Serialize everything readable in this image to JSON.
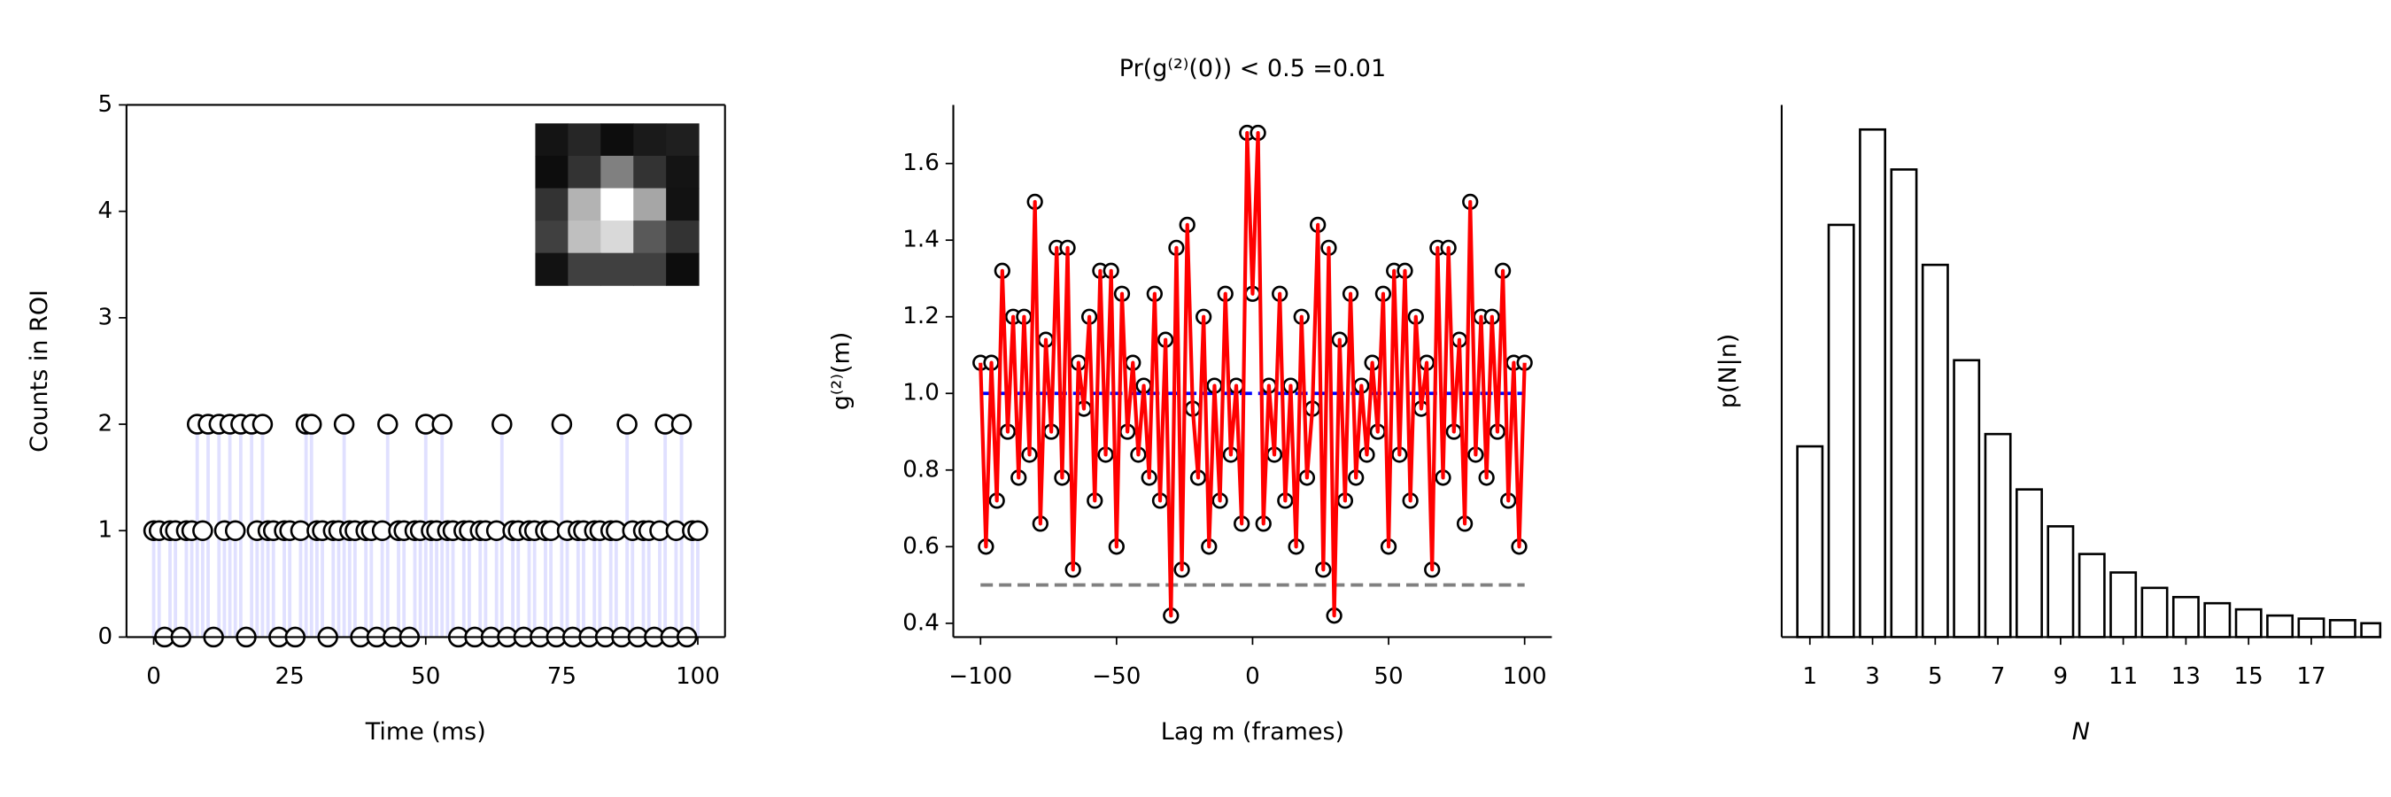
{
  "chart_data": [
    {
      "type": "stem",
      "xlabel": "Time (ms)",
      "ylabel": "Counts in ROI",
      "x": [
        0,
        1,
        2,
        3,
        4,
        5,
        6,
        7,
        8,
        9,
        10,
        11,
        12,
        13,
        14,
        15,
        16,
        17,
        18,
        19,
        20,
        21,
        22,
        23,
        24,
        25,
        26,
        27,
        28,
        29,
        30,
        31,
        32,
        33,
        34,
        35,
        36,
        37,
        38,
        39,
        40,
        41,
        42,
        43,
        44,
        45,
        46,
        47,
        48,
        49,
        50,
        51,
        52,
        53,
        54,
        55,
        56,
        57,
        58,
        59,
        60,
        61,
        62,
        63,
        64,
        65,
        66,
        67,
        68,
        69,
        70,
        71,
        72,
        73,
        74,
        75,
        76,
        77,
        78,
        79,
        80,
        81,
        82,
        83,
        84,
        85,
        86,
        87,
        88,
        89,
        90,
        91,
        92,
        93,
        94,
        95,
        96,
        97,
        98,
        99,
        100
      ],
      "values": [
        1,
        1,
        0,
        1,
        1,
        0,
        1,
        1,
        2,
        1,
        2,
        0,
        2,
        1,
        2,
        1,
        2,
        0,
        2,
        1,
        2,
        1,
        1,
        0,
        1,
        1,
        0,
        1,
        2,
        2,
        1,
        1,
        0,
        1,
        1,
        2,
        1,
        1,
        0,
        1,
        1,
        0,
        1,
        2,
        0,
        1,
        1,
        0,
        1,
        1,
        2,
        1,
        1,
        2,
        1,
        1,
        0,
        1,
        1,
        0,
        1,
        1,
        0,
        1,
        2,
        0,
        1,
        1,
        0,
        1,
        1,
        0,
        1,
        1,
        0,
        2,
        1,
        0,
        1,
        1,
        0,
        1,
        1,
        0,
        1,
        1,
        0,
        2,
        1,
        0,
        1,
        1,
        0,
        1,
        2,
        0,
        1,
        2,
        0,
        1,
        1
      ],
      "color": "#0000ff",
      "xlim": [
        -5,
        105
      ],
      "xticks": [
        0,
        25,
        50,
        75,
        100
      ],
      "ylim": [
        0,
        5
      ],
      "yticks": [
        0,
        1,
        2,
        3,
        4,
        5
      ],
      "inset": {
        "type": "heatmap",
        "cmap": "gray",
        "values": [
          [
            0.08,
            0.15,
            0.05,
            0.1,
            0.12
          ],
          [
            0.05,
            0.2,
            0.5,
            0.2,
            0.08
          ],
          [
            0.2,
            0.7,
            1.0,
            0.65,
            0.07
          ],
          [
            0.25,
            0.75,
            0.85,
            0.35,
            0.2
          ],
          [
            0.07,
            0.25,
            0.25,
            0.25,
            0.05
          ]
        ]
      }
    },
    {
      "type": "line",
      "title": "Pr(g⁽²⁾(0)) < 0.5 =0.01",
      "xlabel": "Lag m (frames)",
      "ylabel": "g⁽²⁾(m)",
      "x": [
        -100,
        -98,
        -96,
        -94,
        -92,
        -90,
        -88,
        -86,
        -84,
        -82,
        -80,
        -78,
        -76,
        -74,
        -72,
        -70,
        -68,
        -66,
        -64,
        -62,
        -60,
        -58,
        -56,
        -54,
        -52,
        -50,
        -48,
        -46,
        -44,
        -42,
        -40,
        -38,
        -36,
        -34,
        -32,
        -30,
        -28,
        -26,
        -24,
        -22,
        -20,
        -18,
        -16,
        -14,
        -12,
        -10,
        -8,
        -6,
        -4,
        -2,
        0,
        2,
        4,
        6,
        8,
        10,
        12,
        14,
        16,
        18,
        20,
        22,
        24,
        26,
        28,
        30,
        32,
        34,
        36,
        38,
        40,
        42,
        44,
        46,
        48,
        50,
        52,
        54,
        56,
        58,
        60,
        62,
        64,
        66,
        68,
        70,
        72,
        74,
        76,
        78,
        80,
        82,
        84,
        86,
        88,
        90,
        92,
        94,
        96,
        98,
        100
      ],
      "values": [
        1.08,
        0.6,
        1.08,
        0.72,
        1.32,
        0.9,
        1.2,
        0.78,
        1.2,
        0.84,
        1.5,
        0.66,
        1.14,
        0.9,
        1.38,
        0.78,
        1.38,
        0.54,
        1.08,
        0.96,
        1.2,
        0.72,
        1.32,
        0.84,
        1.32,
        0.6,
        1.26,
        0.9,
        1.08,
        0.84,
        1.02,
        0.78,
        1.26,
        0.72,
        1.14,
        0.42,
        1.38,
        0.54,
        1.44,
        0.96,
        0.78,
        1.2,
        0.6,
        1.02,
        0.72,
        1.26,
        0.84,
        1.02,
        0.66,
        1.68,
        1.26,
        1.68,
        0.66,
        1.02,
        0.84,
        1.26,
        0.72,
        1.02,
        0.6,
        1.2,
        0.78,
        0.96,
        1.44,
        0.54,
        1.38,
        0.42,
        1.14,
        0.72,
        1.26,
        0.78,
        1.02,
        0.84,
        1.08,
        0.9,
        1.26,
        0.6,
        1.32,
        0.84,
        1.32,
        0.72,
        1.2,
        0.96,
        1.08,
        0.54,
        1.38,
        0.78,
        1.38,
        0.9,
        1.14,
        0.66,
        1.5,
        0.84,
        1.2,
        0.78,
        1.2,
        0.9,
        1.32,
        0.72,
        1.08,
        0.6,
        1.08
      ],
      "color": "#ff0000",
      "xlim": [
        -110,
        110
      ],
      "xticks": [
        {
          "value": -100,
          "label": "−100"
        },
        {
          "value": -50,
          "label": "−50"
        },
        0,
        50,
        100
      ],
      "ylim": [
        0.364,
        1.753
      ],
      "yticks": [
        0.4,
        0.6,
        0.8,
        {
          "value": 1,
          "label": "1.0"
        },
        1.2,
        1.4,
        1.6
      ],
      "hlines": [
        {
          "value": 1,
          "from": -100,
          "to": 100,
          "color": "#0000ff"
        },
        {
          "value": 0.5,
          "from": -100,
          "to": 100,
          "color": "#808080"
        }
      ]
    },
    {
      "type": "bar",
      "xlabel": "N",
      "ylabel": "p(N|n)",
      "x": [
        1,
        2,
        3,
        4,
        5,
        6,
        7,
        8,
        9,
        10,
        11,
        12,
        13,
        14,
        15,
        16,
        17,
        18,
        19
      ],
      "values": [
        0.062,
        0.134,
        0.165,
        0.152,
        0.121,
        0.09,
        0.066,
        0.048,
        0.036,
        0.027,
        0.021,
        0.016,
        0.013,
        0.011,
        0.009,
        0.007,
        0.006,
        0.0055,
        0.0045
      ],
      "color": "#ffffff",
      "edgecolor": "#000000",
      "bar_width": 0.8,
      "xlim": [
        0.1,
        19.2
      ],
      "xticks": [
        1,
        3,
        5,
        7,
        9,
        11,
        13,
        15,
        17
      ],
      "ylim": [
        0,
        0.173
      ]
    }
  ]
}
